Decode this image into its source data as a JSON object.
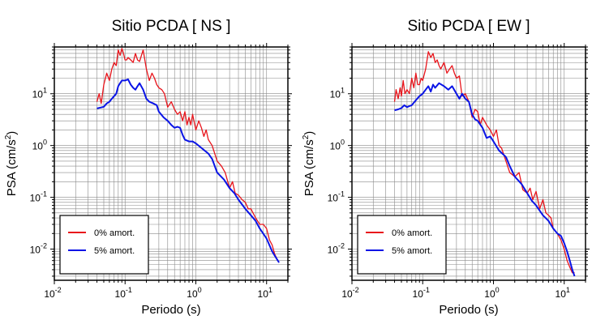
{
  "chart_data": [
    {
      "type": "line",
      "title": "Sitio PCDA [ NS ]",
      "xlabel": "Periodo (s)",
      "ylabel_main": "PSA (cm/s",
      "ylabel_sup": "2",
      "ylabel_close": ")",
      "xscale": "log",
      "yscale": "log",
      "xlim": [
        0.01,
        20
      ],
      "ylim": [
        0.0025,
        80
      ],
      "grid": true,
      "legend_position": "bottom-left",
      "x_ticks": [
        {
          "value": 0.01,
          "base": "10",
          "exp": "-2"
        },
        {
          "value": 0.1,
          "base": "10",
          "exp": "-1"
        },
        {
          "value": 1,
          "base": "10",
          "exp": "0"
        },
        {
          "value": 10,
          "base": "10",
          "exp": "1"
        }
      ],
      "y_ticks": [
        {
          "value": 0.01,
          "base": "10",
          "exp": "-2"
        },
        {
          "value": 0.1,
          "base": "10",
          "exp": "-1"
        },
        {
          "value": 1,
          "base": "10",
          "exp": "0"
        },
        {
          "value": 10,
          "base": "10",
          "exp": "1"
        }
      ],
      "series": [
        {
          "name": "0% amort.",
          "color": "#e8141b",
          "x": [
            0.04,
            0.043,
            0.046,
            0.05,
            0.055,
            0.06,
            0.065,
            0.07,
            0.075,
            0.08,
            0.085,
            0.09,
            0.095,
            0.1,
            0.105,
            0.11,
            0.12,
            0.13,
            0.14,
            0.15,
            0.16,
            0.17,
            0.18,
            0.19,
            0.2,
            0.22,
            0.24,
            0.26,
            0.28,
            0.3,
            0.33,
            0.36,
            0.4,
            0.45,
            0.5,
            0.55,
            0.6,
            0.65,
            0.7,
            0.75,
            0.8,
            0.85,
            0.9,
            1.0,
            1.1,
            1.2,
            1.3,
            1.4,
            1.5,
            1.7,
            2.0,
            2.3,
            2.6,
            3.0,
            3.3,
            3.6,
            4.0,
            4.5,
            5.0,
            5.5,
            6.0,
            7.0,
            8.0,
            9.0,
            10.0,
            11.0,
            12.0,
            13.0,
            14.0,
            15.0
          ],
          "y": [
            7,
            10,
            6.5,
            15,
            25,
            18,
            30,
            40,
            35,
            70,
            55,
            75,
            60,
            45,
            45,
            50,
            45,
            40,
            60,
            45,
            42,
            55,
            70,
            45,
            30,
            18,
            25,
            20,
            15,
            13,
            12,
            10,
            5.5,
            7,
            5,
            4,
            4.5,
            3,
            4.5,
            2.5,
            3.5,
            2.5,
            4,
            2,
            3,
            2.2,
            1.5,
            2,
            1.3,
            1,
            0.5,
            0.4,
            0.3,
            0.15,
            0.2,
            0.12,
            0.11,
            0.09,
            0.08,
            0.06,
            0.06,
            0.04,
            0.03,
            0.03,
            0.025,
            0.015,
            0.012,
            0.008,
            0.0065,
            0.0055
          ]
        },
        {
          "name": "5% amort.",
          "color": "#0a14e6",
          "x": [
            0.04,
            0.045,
            0.05,
            0.055,
            0.06,
            0.065,
            0.07,
            0.075,
            0.08,
            0.085,
            0.09,
            0.1,
            0.11,
            0.12,
            0.13,
            0.14,
            0.15,
            0.16,
            0.18,
            0.2,
            0.22,
            0.25,
            0.28,
            0.3,
            0.35,
            0.4,
            0.45,
            0.5,
            0.55,
            0.6,
            0.65,
            0.7,
            0.8,
            0.9,
            1.0,
            1.2,
            1.5,
            1.7,
            2.0,
            2.5,
            3.0,
            3.5,
            4.0,
            5.0,
            6.0,
            7.0,
            8.0,
            10.0,
            12.0,
            13.0,
            15.0
          ],
          "y": [
            5.2,
            5.4,
            5.6,
            6.5,
            7,
            8,
            9,
            10,
            14,
            16,
            18,
            18,
            19,
            15,
            13,
            12,
            14,
            16,
            12,
            8,
            7,
            6.5,
            6,
            4.5,
            3.5,
            3,
            2.5,
            2.2,
            2.3,
            2.2,
            1.6,
            1.3,
            1.2,
            1.2,
            1.1,
            0.9,
            0.7,
            0.55,
            0.3,
            0.22,
            0.15,
            0.12,
            0.09,
            0.06,
            0.045,
            0.035,
            0.025,
            0.016,
            0.009,
            0.0075,
            0.0055
          ]
        }
      ]
    },
    {
      "type": "line",
      "title": "Sitio PCDA [ EW ]",
      "xlabel": "Periodo (s)",
      "ylabel_main": "PSA (cm/s",
      "ylabel_sup": "2",
      "ylabel_close": ")",
      "xscale": "log",
      "yscale": "log",
      "xlim": [
        0.01,
        20
      ],
      "ylim": [
        0.0025,
        80
      ],
      "grid": true,
      "legend_position": "bottom-left",
      "x_ticks": [
        {
          "value": 0.01,
          "base": "10",
          "exp": "-2"
        },
        {
          "value": 0.1,
          "base": "10",
          "exp": "-1"
        },
        {
          "value": 1,
          "base": "10",
          "exp": "0"
        },
        {
          "value": 10,
          "base": "10",
          "exp": "1"
        }
      ],
      "y_ticks": [
        {
          "value": 0.01,
          "base": "10",
          "exp": "-2"
        },
        {
          "value": 0.1,
          "base": "10",
          "exp": "-1"
        },
        {
          "value": 1,
          "base": "10",
          "exp": "0"
        },
        {
          "value": 10,
          "base": "10",
          "exp": "1"
        }
      ],
      "series": [
        {
          "name": "0% amort.",
          "color": "#e8141b",
          "x": [
            0.04,
            0.042,
            0.045,
            0.048,
            0.05,
            0.053,
            0.056,
            0.06,
            0.065,
            0.07,
            0.075,
            0.08,
            0.085,
            0.09,
            0.095,
            0.1,
            0.11,
            0.12,
            0.13,
            0.14,
            0.15,
            0.16,
            0.17,
            0.18,
            0.2,
            0.22,
            0.24,
            0.26,
            0.28,
            0.3,
            0.33,
            0.36,
            0.4,
            0.45,
            0.5,
            0.55,
            0.6,
            0.65,
            0.7,
            0.8,
            0.9,
            1.0,
            1.1,
            1.2,
            1.3,
            1.5,
            1.7,
            2.0,
            2.3,
            2.6,
            3.0,
            3.3,
            3.6,
            4.0,
            4.5,
            5.0,
            5.5,
            6.0,
            6.5,
            7.0,
            8.0,
            9.0,
            10.0,
            11.0,
            12.0,
            13.0,
            14.0
          ],
          "y": [
            7,
            12,
            8,
            13,
            9,
            18,
            10,
            12,
            10,
            20,
            13,
            25,
            15,
            15,
            20,
            18,
            30,
            65,
            50,
            60,
            40,
            45,
            35,
            30,
            40,
            25,
            30,
            35,
            25,
            20,
            22,
            9,
            10,
            7,
            3.5,
            5,
            4.5,
            2.5,
            3.5,
            2.5,
            2,
            1.5,
            2,
            1,
            0.9,
            0.5,
            0.3,
            0.25,
            0.3,
            0.14,
            0.12,
            0.15,
            0.09,
            0.13,
            0.06,
            0.09,
            0.05,
            0.045,
            0.04,
            0.025,
            0.02,
            0.015,
            0.01,
            0.006,
            0.0045,
            0.0035,
            0.0035
          ]
        },
        {
          "name": "5% amort.",
          "color": "#0a14e6",
          "x": [
            0.04,
            0.045,
            0.05,
            0.055,
            0.06,
            0.065,
            0.07,
            0.08,
            0.09,
            0.1,
            0.11,
            0.12,
            0.13,
            0.14,
            0.15,
            0.17,
            0.2,
            0.23,
            0.26,
            0.3,
            0.33,
            0.36,
            0.4,
            0.45,
            0.5,
            0.55,
            0.6,
            0.7,
            0.8,
            0.9,
            1.0,
            1.2,
            1.5,
            1.7,
            2.0,
            2.5,
            3.0,
            3.5,
            4.0,
            5.0,
            6.0,
            7.0,
            8.0,
            9.0,
            10.0,
            11.0,
            12.0,
            13.0,
            14.0
          ],
          "y": [
            4.8,
            5,
            5.3,
            6,
            5.5,
            5.8,
            6,
            7.5,
            9,
            10,
            12,
            14,
            11,
            15,
            13,
            16,
            14,
            12,
            14,
            10,
            8,
            10,
            8,
            7,
            4,
            3.2,
            3,
            2.2,
            1.4,
            1.5,
            1.2,
            0.8,
            0.6,
            0.4,
            0.25,
            0.18,
            0.12,
            0.085,
            0.07,
            0.045,
            0.035,
            0.025,
            0.02,
            0.018,
            0.013,
            0.009,
            0.006,
            0.004,
            0.003
          ]
        }
      ]
    }
  ]
}
